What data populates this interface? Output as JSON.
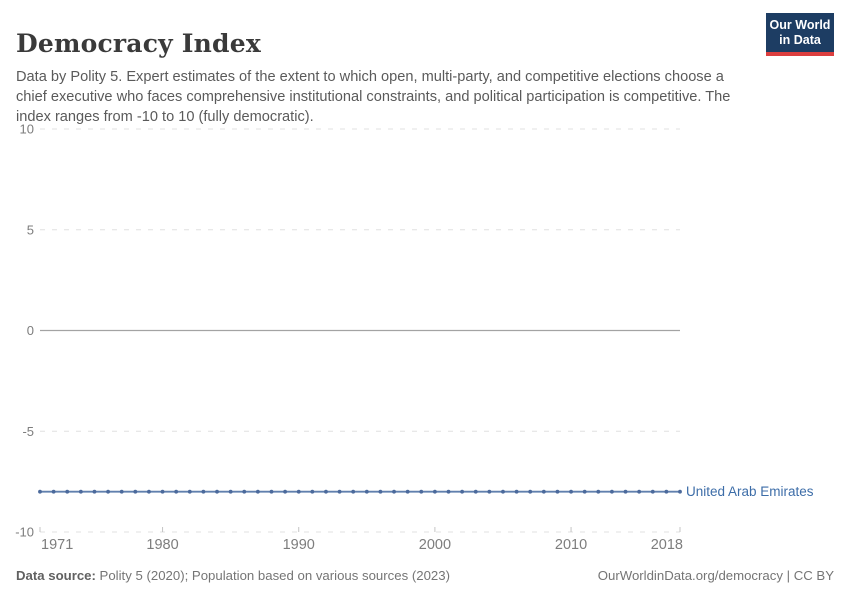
{
  "header": {
    "title": "Democracy Index",
    "subtitle": "Data by Polity 5. Expert estimates of the extent to which open, multi-party, and competitive elections choose a chief executive who faces comprehensive institutional constraints, and political participation is competitive. The index ranges from -10 to 10 (fully democratic).",
    "logo": {
      "line1": "Our World",
      "line2": "in Data"
    }
  },
  "chart_data": {
    "type": "line",
    "title": "Democracy Index",
    "xlabel": "",
    "ylabel": "",
    "xlim": [
      1971,
      2018
    ],
    "ylim": [
      -10,
      10
    ],
    "yticks": [
      10,
      5,
      0,
      -5,
      -10
    ],
    "xticks": [
      1971,
      1980,
      1990,
      2000,
      2010,
      2018
    ],
    "grid": "horizontal dashed gridlines, solid zero line, dashed bottom axis with small ticks",
    "legend_position": "label at end of line",
    "series": [
      {
        "name": "United Arab Emirates",
        "color": "#4c6a9c",
        "line_color": "#6180ae",
        "label_color": "#3d6da8",
        "x": [
          1971,
          1972,
          1973,
          1974,
          1975,
          1976,
          1977,
          1978,
          1979,
          1980,
          1981,
          1982,
          1983,
          1984,
          1985,
          1986,
          1987,
          1988,
          1989,
          1990,
          1991,
          1992,
          1993,
          1994,
          1995,
          1996,
          1997,
          1998,
          1999,
          2000,
          2001,
          2002,
          2003,
          2004,
          2005,
          2006,
          2007,
          2008,
          2009,
          2010,
          2011,
          2012,
          2013,
          2014,
          2015,
          2016,
          2017,
          2018
        ],
        "values": [
          -8,
          -8,
          -8,
          -8,
          -8,
          -8,
          -8,
          -8,
          -8,
          -8,
          -8,
          -8,
          -8,
          -8,
          -8,
          -8,
          -8,
          -8,
          -8,
          -8,
          -8,
          -8,
          -8,
          -8,
          -8,
          -8,
          -8,
          -8,
          -8,
          -8,
          -8,
          -8,
          -8,
          -8,
          -8,
          -8,
          -8,
          -8,
          -8,
          -8,
          -8,
          -8,
          -8,
          -8,
          -8,
          -8,
          -8,
          -8
        ]
      }
    ]
  },
  "footer": {
    "source_label": "Data source:",
    "source_text": " Polity 5 (2020); Population based on various sources (2023)",
    "credit": "OurWorldinData.org/democracy | CC BY"
  },
  "colors": {
    "logo_navy": "#1d3d63",
    "logo_red": "#dc3e3e",
    "grid_dashed": "#e0e0e0",
    "grid_zero": "#a3a3a3",
    "axis_text": "#7d7d7d",
    "tick_mark": "#c4c4c4"
  }
}
